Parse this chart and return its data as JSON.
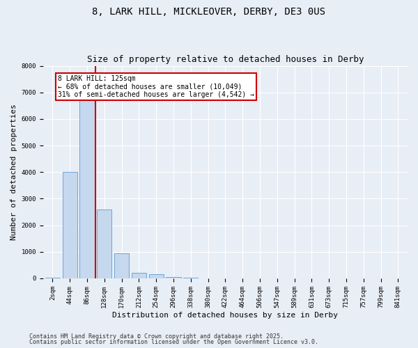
{
  "title_line1": "8, LARK HILL, MICKLEOVER, DERBY, DE3 0US",
  "title_line2": "Size of property relative to detached houses in Derby",
  "xlabel": "Distribution of detached houses by size in Derby",
  "ylabel": "Number of detached properties",
  "bar_labels": [
    "2sqm",
    "44sqm",
    "86sqm",
    "128sqm",
    "170sqm",
    "212sqm",
    "254sqm",
    "296sqm",
    "338sqm",
    "380sqm",
    "422sqm",
    "464sqm",
    "506sqm",
    "547sqm",
    "589sqm",
    "631sqm",
    "673sqm",
    "715sqm",
    "757sqm",
    "799sqm",
    "841sqm"
  ],
  "bar_values": [
    20,
    4000,
    7300,
    2600,
    950,
    200,
    150,
    50,
    30,
    10,
    0,
    0,
    0,
    0,
    0,
    0,
    0,
    0,
    0,
    0,
    0
  ],
  "bar_color": "#c5d8ed",
  "bar_edge_color": "#5b9bd5",
  "vline_color": "#cc0000",
  "annotation_text": "8 LARK HILL: 125sqm\n← 68% of detached houses are smaller (10,049)\n31% of semi-detached houses are larger (4,542) →",
  "annotation_box_color": "#ffffff",
  "annotation_box_edge": "#cc0000",
  "ylim": [
    0,
    8000
  ],
  "yticks": [
    0,
    1000,
    2000,
    3000,
    4000,
    5000,
    6000,
    7000,
    8000
  ],
  "footer_line1": "Contains HM Land Registry data © Crown copyright and database right 2025.",
  "footer_line2": "Contains public sector information licensed under the Open Government Licence v3.0.",
  "background_color": "#e8eef6",
  "plot_background": "#e8eef6",
  "title_fontsize": 10,
  "subtitle_fontsize": 9,
  "axis_label_fontsize": 8,
  "tick_fontsize": 6.5,
  "footer_fontsize": 6,
  "ann_fontsize": 7
}
